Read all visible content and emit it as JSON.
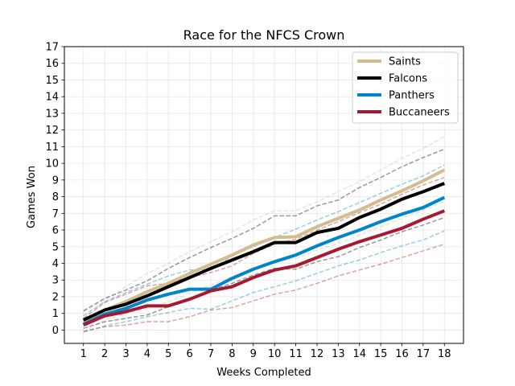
{
  "chart_data": {
    "type": "line",
    "title": "Race for the NFCS Crown",
    "xlabel": "Weeks Completed",
    "ylabel": "Games Won",
    "x": [
      1,
      2,
      3,
      4,
      5,
      6,
      7,
      8,
      9,
      10,
      11,
      12,
      13,
      14,
      15,
      16,
      17,
      18
    ],
    "xlim": [
      0.1,
      18.9
    ],
    "ylim": [
      -0.8,
      17
    ],
    "yticks": [
      0,
      1,
      2,
      3,
      4,
      5,
      6,
      7,
      8,
      9,
      10,
      11,
      12,
      13,
      14,
      15,
      16,
      17
    ],
    "grid": true,
    "legend_position": "top-right",
    "series": [
      {
        "name": "Saints",
        "color": "#d3bc8d",
        "values": [
          0.5,
          1.2,
          1.7,
          2.3,
          2.8,
          3.4,
          3.95,
          4.5,
          5.1,
          5.55,
          5.6,
          6.2,
          6.7,
          7.2,
          7.8,
          8.35,
          8.95,
          9.6
        ],
        "upper": [
          1.1,
          1.8,
          2.6,
          3.4,
          4.0,
          4.7,
          5.3,
          5.9,
          6.6,
          7.15,
          7.15,
          7.7,
          8.3,
          8.9,
          9.6,
          10.3,
          10.9,
          11.6
        ],
        "lower": [
          -0.1,
          0.6,
          1.0,
          1.3,
          1.7,
          2.2,
          2.7,
          3.2,
          3.7,
          4.1,
          4.3,
          4.8,
          5.2,
          5.7,
          6.2,
          6.7,
          7.2,
          7.7
        ]
      },
      {
        "name": "Falcons",
        "color": "#000000",
        "values": [
          0.6,
          1.2,
          1.55,
          2.05,
          2.6,
          3.15,
          3.7,
          4.2,
          4.7,
          5.25,
          5.25,
          5.85,
          6.1,
          6.75,
          7.25,
          7.85,
          8.3,
          8.8
        ],
        "upper": [
          1.15,
          1.9,
          2.4,
          2.95,
          3.7,
          4.35,
          4.95,
          5.5,
          6.1,
          6.85,
          6.85,
          7.45,
          7.8,
          8.55,
          9.15,
          9.8,
          10.35,
          10.85
        ],
        "lower": [
          0.1,
          0.5,
          0.7,
          0.9,
          1.4,
          1.9,
          2.4,
          2.8,
          3.3,
          3.7,
          3.65,
          4.1,
          4.4,
          4.95,
          5.4,
          5.9,
          6.3,
          6.75
        ]
      },
      {
        "name": "Panthers",
        "color": "#0085ca",
        "values": [
          0.35,
          0.95,
          1.3,
          1.8,
          2.15,
          2.45,
          2.45,
          3.1,
          3.65,
          4.1,
          4.5,
          5.05,
          5.55,
          6.0,
          6.5,
          6.95,
          7.35,
          7.95
        ],
        "upper": [
          0.85,
          1.7,
          2.25,
          2.75,
          3.25,
          3.6,
          3.6,
          4.45,
          5.0,
          5.55,
          6.05,
          6.6,
          7.1,
          7.65,
          8.2,
          8.75,
          9.25,
          9.9
        ],
        "lower": [
          -0.1,
          0.25,
          0.5,
          0.8,
          1.05,
          1.3,
          1.25,
          1.75,
          2.25,
          2.6,
          2.95,
          3.4,
          3.85,
          4.2,
          4.65,
          5.05,
          5.4,
          5.95
        ]
      },
      {
        "name": "Buccaneers",
        "color": "#a71930",
        "values": [
          0.3,
          0.85,
          1.1,
          1.45,
          1.45,
          1.85,
          2.35,
          2.6,
          3.15,
          3.6,
          3.85,
          4.35,
          4.85,
          5.3,
          5.7,
          6.1,
          6.65,
          7.15
        ],
        "upper": [
          0.7,
          1.65,
          2.15,
          2.65,
          2.8,
          3.15,
          3.45,
          3.85,
          4.6,
          5.15,
          5.45,
          6.0,
          6.5,
          7.05,
          7.55,
          8.15,
          8.7,
          9.15
        ],
        "lower": [
          -0.1,
          0.2,
          0.3,
          0.5,
          0.5,
          0.8,
          1.2,
          1.35,
          1.75,
          2.15,
          2.4,
          2.8,
          3.25,
          3.6,
          3.95,
          4.35,
          4.75,
          5.15
        ]
      }
    ]
  }
}
